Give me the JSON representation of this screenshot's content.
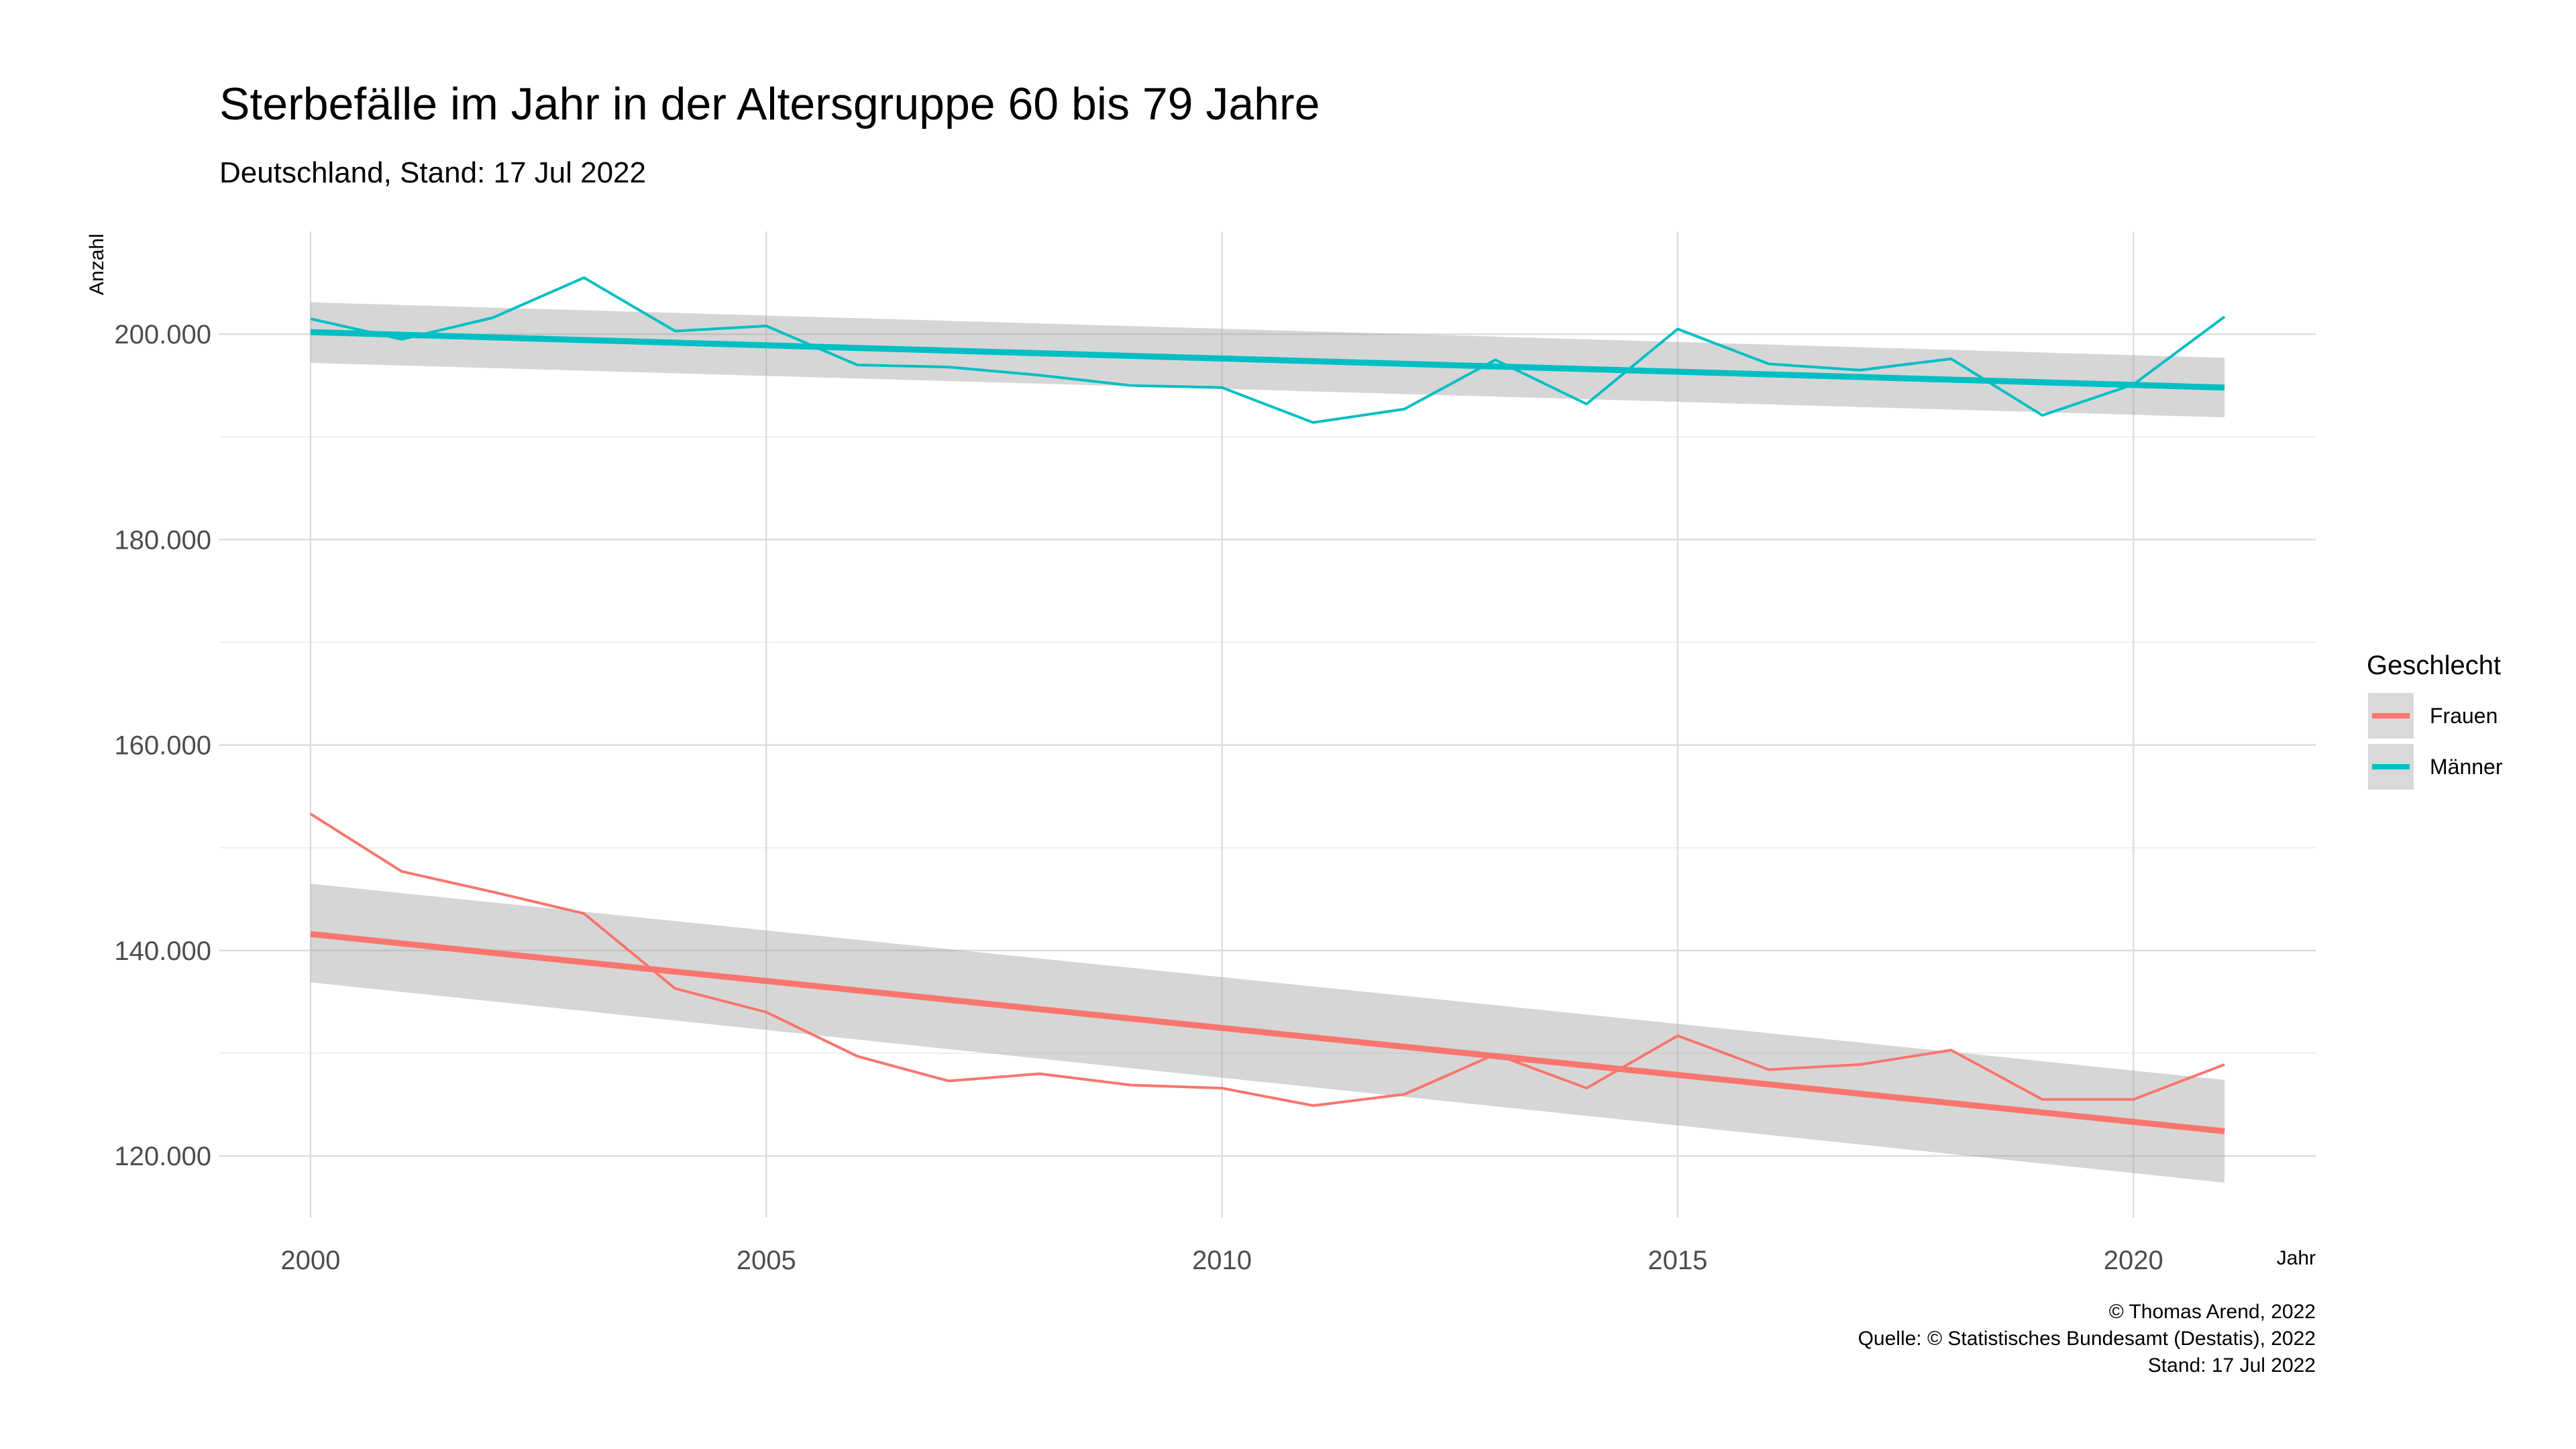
{
  "chart_data": {
    "type": "line",
    "title": "Sterbefälle im Jahr in der Altersgruppe 60 bis 79 Jahre",
    "subtitle": "Deutschland, Stand: 17 Jul 2022",
    "xlabel": "Jahr",
    "ylabel": "Anzahl",
    "xlim": [
      1999,
      2022
    ],
    "ylim": [
      114000,
      210000
    ],
    "x_ticks": [
      2000,
      2005,
      2010,
      2015,
      2020
    ],
    "x_tick_labels": [
      "2000",
      "2005",
      "2010",
      "2015",
      "2020"
    ],
    "y_ticks": [
      120000,
      140000,
      160000,
      180000,
      200000
    ],
    "y_tick_labels": [
      "120.000",
      "140.000",
      "160.000",
      "180.000",
      "200.000"
    ],
    "grid": true,
    "legend": {
      "title": "Geschlecht",
      "position": "right",
      "entries": [
        "Frauen",
        "Männer"
      ]
    },
    "x": [
      2000,
      2001,
      2002,
      2003,
      2004,
      2005,
      2006,
      2007,
      2008,
      2009,
      2010,
      2011,
      2012,
      2013,
      2014,
      2015,
      2016,
      2017,
      2018,
      2019,
      2020,
      2021
    ],
    "series": [
      {
        "name": "Frauen",
        "color": "#F8766D",
        "values": [
          153300,
          147700,
          145700,
          143600,
          136300,
          134000,
          129700,
          127300,
          128000,
          126900,
          126600,
          124900,
          126000,
          129900,
          126600,
          131700,
          128400,
          128900,
          130300,
          125500,
          125500,
          128900
        ],
        "trend": {
          "start": [
            2000,
            141600
          ],
          "end": [
            2021,
            122400
          ],
          "ci_start": [
            136900,
            146500
          ],
          "ci_end": [
            117400,
            127400
          ]
        }
      },
      {
        "name": "Männer",
        "color": "#00BFC4",
        "values": [
          201500,
          199500,
          201600,
          205500,
          200300,
          200800,
          197000,
          196800,
          196000,
          195000,
          194800,
          191400,
          192700,
          197500,
          193200,
          200500,
          197100,
          196500,
          197600,
          192100,
          195100,
          201700
        ],
        "trend": {
          "start": [
            2000,
            200200
          ],
          "end": [
            2021,
            194800
          ],
          "ci_start": [
            197200,
            203100
          ],
          "ci_end": [
            191900,
            197700
          ]
        }
      }
    ],
    "band_color": "#999999",
    "caption": [
      "© Thomas Arend, 2022",
      "Quelle: © Statistisches Bundesamt (Destatis), 2022",
      "Stand: 17 Jul 2022"
    ]
  }
}
